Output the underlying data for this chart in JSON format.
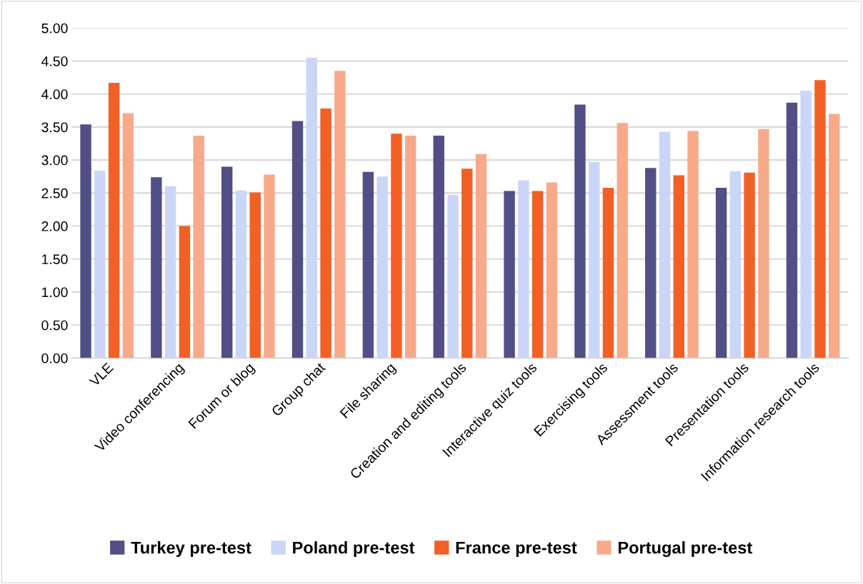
{
  "chart_data": {
    "type": "bar",
    "categories": [
      "VLE",
      "Video conferencing",
      "Forum or blog",
      "Group chat",
      "File sharing",
      "Creation and editing tools",
      "Interactive quiz tools",
      "Exercising tools",
      "Assessment tools",
      "Presentation tools",
      "Information research tools"
    ],
    "series": [
      {
        "name": "Turkey pre-test",
        "color": "#524f86",
        "values": [
          3.54,
          2.74,
          2.9,
          3.59,
          2.82,
          3.37,
          2.53,
          3.84,
          2.88,
          2.58,
          3.87
        ]
      },
      {
        "name": "Poland pre-test",
        "color": "#c9d6f8",
        "values": [
          2.84,
          2.6,
          2.54,
          4.55,
          2.75,
          2.47,
          2.69,
          2.97,
          3.43,
          2.83,
          4.05
        ]
      },
      {
        "name": "France pre-test",
        "color": "#f26026",
        "values": [
          4.17,
          2.0,
          2.51,
          3.78,
          3.4,
          2.87,
          2.53,
          2.58,
          2.77,
          2.81,
          4.21
        ]
      },
      {
        "name": "Portugal pre-test",
        "color": "#f7aa8a",
        "values": [
          3.71,
          3.37,
          2.78,
          4.35,
          3.37,
          3.09,
          2.66,
          3.56,
          3.44,
          3.47,
          3.7
        ]
      }
    ],
    "ylim": [
      0,
      5
    ],
    "yticks": [
      {
        "value": 0,
        "label": "0.00"
      },
      {
        "value": 0.5,
        "label": "0.50"
      },
      {
        "value": 1,
        "label": "1.00"
      },
      {
        "value": 1.5,
        "label": "1.50"
      },
      {
        "value": 2,
        "label": "2.00"
      },
      {
        "value": 2.5,
        "label": "2.50"
      },
      {
        "value": 3,
        "label": "3.00"
      },
      {
        "value": 3.5,
        "label": "3.50"
      },
      {
        "value": 4,
        "label": "4.00"
      },
      {
        "value": 4.5,
        "label": "4.50"
      },
      {
        "value": 5,
        "label": "5.00"
      }
    ],
    "grid": "y",
    "legend": "bottom"
  }
}
